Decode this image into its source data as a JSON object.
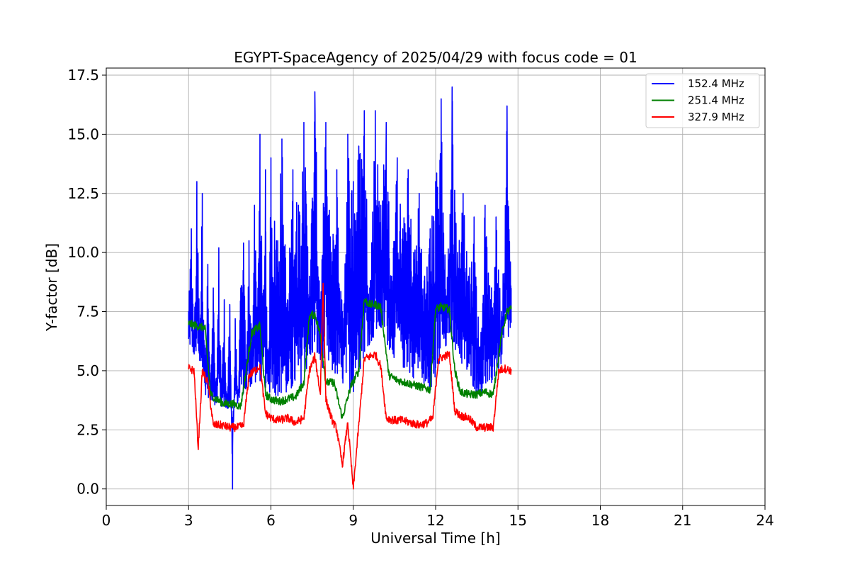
{
  "chart_data": {
    "type": "line",
    "title": "EGYPT-SpaceAgency of 2025/04/29 with focus code = 01",
    "xlabel": "Universal Time [h]",
    "ylabel": "Y-factor [dB]",
    "xlim": [
      0,
      24
    ],
    "ylim": [
      -0.7,
      17.8
    ],
    "xticks": [
      0,
      3,
      6,
      9,
      12,
      15,
      18,
      21,
      24
    ],
    "xtick_labels": [
      "0",
      "3",
      "6",
      "9",
      "12",
      "15",
      "18",
      "21",
      "24"
    ],
    "yticks": [
      0.0,
      2.5,
      5.0,
      7.5,
      10.0,
      12.5,
      15.0,
      17.5
    ],
    "ytick_labels": [
      "0.0",
      "2.5",
      "5.0",
      "7.5",
      "10.0",
      "12.5",
      "15.0",
      "17.5"
    ],
    "grid": true,
    "legend_position": "top-right",
    "series": [
      {
        "name": "152.4 MHz",
        "color": "#0000ff",
        "x": [
          3.0,
          3.1,
          3.2,
          3.3,
          3.4,
          3.5,
          3.6,
          3.7,
          3.8,
          3.9,
          4.0,
          4.1,
          4.2,
          4.3,
          4.4,
          4.5,
          4.6,
          4.7,
          4.8,
          4.9,
          5.0,
          5.1,
          5.2,
          5.3,
          5.4,
          5.5,
          5.6,
          5.7,
          5.8,
          5.9,
          6.0,
          6.2,
          6.4,
          6.6,
          6.8,
          7.0,
          7.2,
          7.4,
          7.6,
          7.8,
          8.0,
          8.2,
          8.4,
          8.6,
          8.8,
          9.0,
          9.2,
          9.4,
          9.6,
          9.8,
          10.0,
          10.2,
          10.4,
          10.6,
          10.8,
          11.0,
          11.2,
          11.4,
          11.6,
          11.8,
          12.0,
          12.2,
          12.4,
          12.6,
          12.8,
          13.0,
          13.2,
          13.4,
          13.6,
          13.8,
          14.0,
          14.2,
          14.4,
          14.6,
          14.75
        ],
        "y": [
          7.5,
          11.0,
          6.0,
          13.0,
          7.0,
          12.5,
          5.5,
          9.5,
          4.0,
          8.5,
          3.8,
          10.2,
          4.5,
          8.0,
          3.5,
          7.8,
          0.0,
          7.2,
          4.0,
          8.5,
          10.4,
          5.0,
          10.5,
          6.0,
          12.0,
          7.5,
          15.0,
          8.0,
          13.5,
          5.0,
          14.0,
          10.5,
          14.8,
          8.0,
          13.5,
          12.0,
          15.5,
          9.0,
          16.8,
          8.0,
          15.5,
          10.0,
          13.5,
          7.5,
          15.0,
          13.0,
          14.5,
          16.0,
          8.5,
          16.0,
          12.0,
          15.5,
          9.0,
          14.0,
          11.0,
          13.5,
          10.0,
          12.5,
          9.0,
          11.0,
          13.0,
          16.5,
          8.0,
          17.0,
          10.0,
          12.5,
          9.0,
          11.5,
          6.0,
          12.0,
          8.0,
          11.5,
          7.5,
          16.2,
          8.5
        ],
        "lower_x": [
          3.0,
          3.3,
          3.6,
          4.0,
          4.3,
          4.6,
          5.0,
          5.5,
          6.0,
          6.5,
          7.0,
          7.5,
          8.0,
          8.5,
          9.0,
          9.5,
          10.0,
          10.5,
          11.0,
          11.5,
          12.0,
          12.5,
          13.0,
          13.5,
          14.0,
          14.5,
          14.75
        ],
        "lower_y": [
          6.0,
          5.5,
          4.0,
          3.5,
          3.4,
          3.3,
          4.0,
          4.5,
          4.0,
          3.8,
          4.0,
          5.5,
          5.0,
          4.5,
          4.0,
          6.0,
          6.5,
          5.5,
          4.8,
          4.5,
          4.0,
          6.5,
          5.0,
          4.0,
          4.2,
          5.5,
          6.5
        ]
      },
      {
        "name": "251.4 MHz",
        "color": "#008000",
        "x": [
          3.0,
          3.3,
          3.6,
          3.8,
          4.0,
          4.3,
          4.6,
          4.9,
          5.1,
          5.3,
          5.6,
          5.8,
          6.0,
          6.3,
          6.6,
          6.9,
          7.2,
          7.4,
          7.6,
          7.8,
          8.0,
          8.3,
          8.6,
          8.9,
          9.2,
          9.4,
          9.6,
          9.8,
          10.0,
          10.3,
          10.6,
          10.9,
          11.2,
          11.5,
          11.8,
          12.0,
          12.2,
          12.5,
          12.7,
          12.9,
          13.2,
          13.5,
          13.8,
          14.1,
          14.4,
          14.6,
          14.75
        ],
        "y": [
          7.0,
          6.9,
          6.8,
          4.0,
          3.8,
          3.6,
          3.6,
          3.5,
          5.0,
          6.6,
          6.9,
          4.0,
          3.8,
          3.7,
          3.8,
          3.9,
          4.5,
          7.3,
          7.4,
          6.5,
          4.5,
          4.5,
          3.0,
          4.3,
          5.0,
          8.0,
          7.8,
          7.8,
          7.7,
          4.8,
          4.6,
          4.5,
          4.4,
          4.3,
          4.2,
          7.6,
          7.7,
          7.6,
          5.0,
          4.1,
          4.0,
          4.0,
          4.1,
          4.0,
          6.5,
          7.5,
          7.6
        ]
      },
      {
        "name": "327.9 MHz",
        "color": "#ff0000",
        "x": [
          3.0,
          3.2,
          3.35,
          3.5,
          3.7,
          3.9,
          4.2,
          4.5,
          4.8,
          5.0,
          5.2,
          5.4,
          5.6,
          5.8,
          6.0,
          6.3,
          6.6,
          6.9,
          7.2,
          7.4,
          7.6,
          7.8,
          7.9,
          8.0,
          8.2,
          8.4,
          8.6,
          8.8,
          9.0,
          9.2,
          9.4,
          9.6,
          9.8,
          10.0,
          10.2,
          10.5,
          10.8,
          11.1,
          11.4,
          11.7,
          11.9,
          12.1,
          12.3,
          12.5,
          12.7,
          12.9,
          13.2,
          13.5,
          13.8,
          14.1,
          14.3,
          14.5,
          14.75
        ],
        "y": [
          5.1,
          5.0,
          1.7,
          5.0,
          4.5,
          2.7,
          2.7,
          2.6,
          2.6,
          2.7,
          4.8,
          5.0,
          5.2,
          3.2,
          3.0,
          2.9,
          3.0,
          2.8,
          3.0,
          5.0,
          5.6,
          4.0,
          8.7,
          3.8,
          3.0,
          2.5,
          1.0,
          2.8,
          0.0,
          2.7,
          5.5,
          5.6,
          5.7,
          5.2,
          3.0,
          2.9,
          2.9,
          2.8,
          2.7,
          2.8,
          3.0,
          5.5,
          5.6,
          5.7,
          3.3,
          3.1,
          3.0,
          2.6,
          2.6,
          2.6,
          5.0,
          5.1,
          5.0
        ]
      }
    ]
  }
}
